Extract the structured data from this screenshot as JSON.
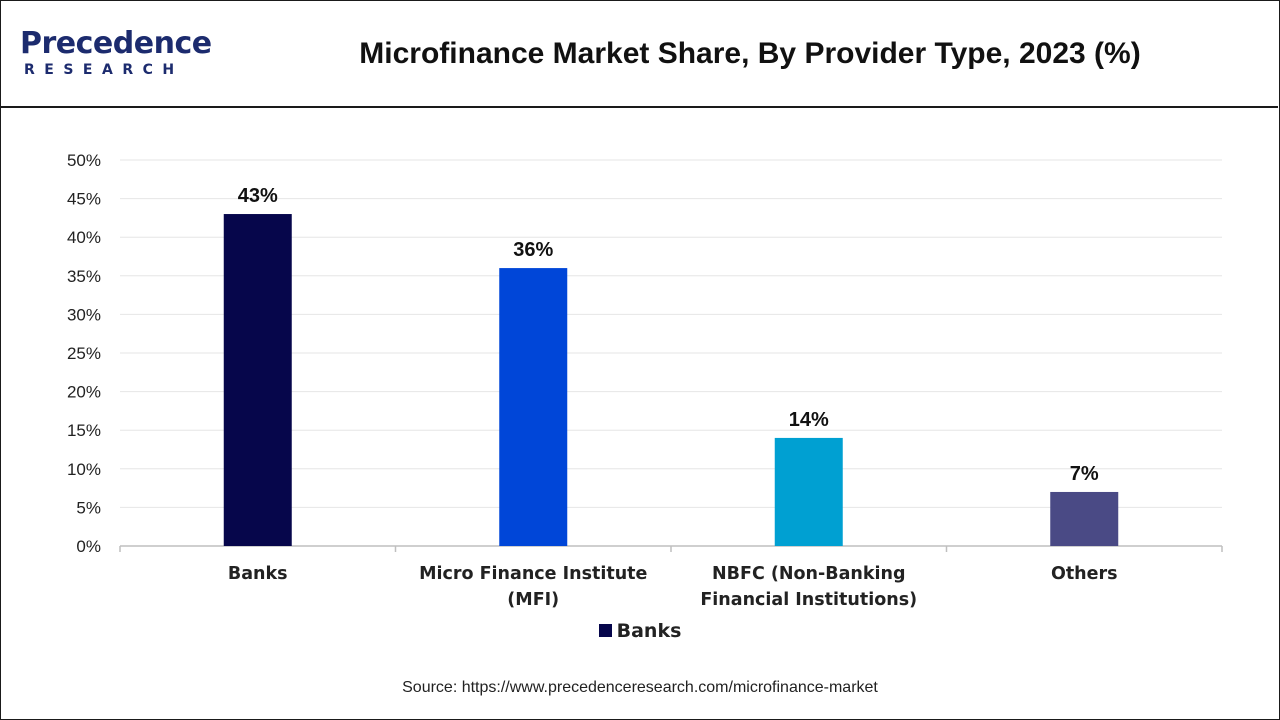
{
  "header": {
    "logo_main": "Precedence",
    "logo_sub": "RESEARCH",
    "title": "Microfinance Market Share, By Provider Type, 2023 (%)"
  },
  "chart_data": {
    "type": "bar",
    "title": "Microfinance Market Share, By Provider Type, 2023 (%)",
    "xlabel": "",
    "ylabel": "",
    "categories": [
      "Banks",
      "Micro Finance Institute (MFI)",
      "NBFC (Non-Banking Financial Institutions)",
      "Others"
    ],
    "category_lines": [
      [
        "Banks"
      ],
      [
        "Micro Finance Institute",
        "(MFI)"
      ],
      [
        "NBFC (Non-Banking",
        "Financial Institutions)"
      ],
      [
        "Others"
      ]
    ],
    "values": [
      43,
      36,
      14,
      7
    ],
    "value_labels": [
      "43%",
      "36%",
      "14%",
      "7%"
    ],
    "bar_colors": [
      "#06064b",
      "#0046d8",
      "#00a0d2",
      "#4a4a85"
    ],
    "ylim": [
      0,
      50
    ],
    "yticks": [
      0,
      5,
      10,
      15,
      20,
      25,
      30,
      35,
      40,
      45,
      50
    ],
    "ytick_labels": [
      "0%",
      "5%",
      "10%",
      "15%",
      "20%",
      "25%",
      "30%",
      "35%",
      "40%",
      "45%",
      "50%"
    ],
    "grid": true,
    "legend": {
      "position": "bottom",
      "entries": [
        {
          "label": "Banks",
          "color": "#06064b"
        }
      ]
    }
  },
  "source": "Source: https://www.precedenceresearch.com/microfinance-market"
}
